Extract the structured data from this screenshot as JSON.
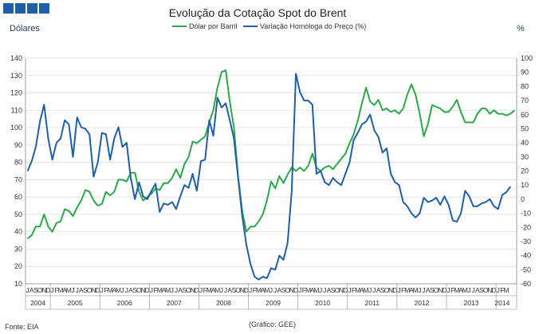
{
  "logo": {
    "name": "GEE four blue squares"
  },
  "chart_data": {
    "type": "line",
    "title": "Evolução da Cotação Spot do Brent",
    "ylabel_left": "Dólares",
    "ylabel_right": "%",
    "left_axis": {
      "min": 10,
      "max": 140,
      "step": 10
    },
    "right_axis": {
      "min": -60,
      "max": 100,
      "step": 10
    },
    "x_month_labels": [
      "J",
      "A",
      "S",
      "O",
      "N",
      "D",
      "J",
      "F",
      "M",
      "A",
      "M",
      "J",
      "J",
      "A",
      "S",
      "O",
      "N",
      "D",
      "J",
      "F",
      "M",
      "A",
      "M",
      "J",
      "J",
      "A",
      "S",
      "O",
      "N",
      "D",
      "J",
      "F",
      "M",
      "A",
      "M",
      "J",
      "J",
      "A",
      "S",
      "O",
      "N",
      "D",
      "J",
      "F",
      "M",
      "A",
      "M",
      "J",
      "J",
      "A",
      "S",
      "O",
      "N",
      "D",
      "J",
      "F",
      "M",
      "A",
      "M",
      "J",
      "J",
      "A",
      "S",
      "O",
      "N",
      "D",
      "J",
      "F",
      "M",
      "A",
      "M",
      "J",
      "J",
      "A",
      "S",
      "O",
      "N",
      "D",
      "J",
      "F",
      "M",
      "A",
      "M",
      "J",
      "J",
      "A",
      "S",
      "O",
      "N",
      "D",
      "J",
      "F",
      "M",
      "A",
      "M",
      "J",
      "J",
      "A",
      "S",
      "O",
      "N",
      "D",
      "J",
      "F",
      "M",
      "A",
      "M",
      "J",
      "J",
      "A",
      "S",
      "O",
      "N",
      "D",
      "J",
      "F",
      "M"
    ],
    "x_month_ticks_shown": "F M A M J J A S O N D, first months J A S O N D (2004), last J F M (2014)",
    "years": [
      {
        "label": "2004",
        "start": 0,
        "count": 6
      },
      {
        "label": "2005",
        "start": 6,
        "count": 12
      },
      {
        "label": "2006",
        "start": 18,
        "count": 12
      },
      {
        "label": "2007",
        "start": 30,
        "count": 12
      },
      {
        "label": "2008",
        "start": 42,
        "count": 12
      },
      {
        "label": "2009",
        "start": 54,
        "count": 12
      },
      {
        "label": "2010",
        "start": 66,
        "count": 12
      },
      {
        "label": "2011",
        "start": 78,
        "count": 12
      },
      {
        "label": "2012",
        "start": 90,
        "count": 12
      },
      {
        "label": "2013",
        "start": 102,
        "count": 12
      },
      {
        "label": "2014",
        "start": 114,
        "count": 3
      }
    ],
    "series": [
      {
        "name": "Dólar por Barril",
        "color": "#2aa84a",
        "axis": "left",
        "values": [
          36,
          38,
          43,
          43,
          50,
          43,
          40,
          45,
          46,
          53,
          52,
          49,
          54,
          58,
          64,
          63,
          58,
          55,
          56,
          63,
          61,
          63,
          70,
          70,
          69,
          74,
          74,
          63,
          58,
          60,
          62,
          65,
          64,
          68,
          68,
          71,
          76,
          71,
          79,
          83,
          92,
          91,
          93,
          95,
          103,
          110,
          123,
          132,
          133,
          115,
          100,
          72,
          52,
          40,
          43,
          43,
          46,
          50,
          58,
          69,
          65,
          72,
          68,
          73,
          77,
          75,
          77,
          75,
          78,
          85,
          77,
          75,
          77,
          78,
          76,
          79,
          82,
          85,
          91,
          96,
          104,
          114,
          123,
          115,
          113,
          116,
          110,
          111,
          109,
          110,
          108,
          111,
          119,
          125,
          119,
          108,
          95,
          102,
          113,
          112,
          111,
          109,
          109,
          112,
          116,
          109,
          103,
          103,
          103,
          108,
          111,
          111,
          108,
          110,
          108,
          108,
          107,
          108,
          110
        ]
      },
      {
        "name": "Variação Homóloga do Preço (%)",
        "color": "#1f5fa6",
        "axis": "right",
        "values": [
          20,
          27,
          37,
          55,
          67,
          43,
          28,
          40,
          43,
          56,
          53,
          30,
          58,
          51,
          50,
          46,
          16,
          26,
          47,
          46,
          28,
          43,
          51,
          37,
          40,
          15,
          0,
          12,
          2,
          0,
          6,
          11,
          -9,
          -3,
          -4,
          -2,
          -7,
          2,
          10,
          8,
          18,
          6,
          27,
          28,
          56,
          45,
          72,
          65,
          68,
          56,
          43,
          15,
          -12,
          -32,
          -46,
          -55,
          -57,
          -55,
          -56,
          -49,
          -50,
          -40,
          -43,
          -31,
          6,
          89,
          76,
          70,
          70,
          67,
          18,
          20,
          12,
          10,
          15,
          12,
          10,
          18,
          26,
          42,
          47,
          53,
          55,
          60,
          49,
          44,
          33,
          36,
          18,
          12,
          10,
          -2,
          -5,
          -10,
          -13,
          -10,
          1,
          -2,
          -1,
          1,
          -4,
          2,
          -4,
          -15,
          -16,
          -10,
          6,
          2,
          -5,
          -5,
          -3,
          -2,
          0,
          -5,
          -7,
          3,
          5,
          9
        ]
      }
    ],
    "legend_placement": "top",
    "grid": "horizontal",
    "footer_left": "Fonte: EIA",
    "footer_center": "(Gráfico: GEE)"
  }
}
